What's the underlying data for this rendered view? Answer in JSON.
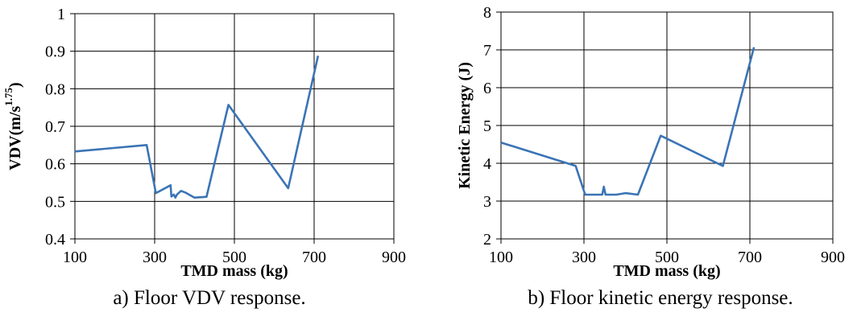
{
  "chart_data": [
    {
      "type": "line",
      "title": "",
      "caption": "a) Floor VDV response.",
      "xlabel": "TMD mass (kg)",
      "ylabel": "VDV(m/s",
      "ylabel_sup": "1.75",
      "ylabel_end": ")",
      "xlim": [
        100,
        900
      ],
      "ylim": [
        0.4,
        1
      ],
      "xticks": [
        100,
        300,
        500,
        700,
        900
      ],
      "xtick_labels": [
        "100",
        "300",
        "500",
        "700",
        "900"
      ],
      "yticks": [
        0.4,
        0.5,
        0.6,
        0.7,
        0.8,
        0.9,
        1
      ],
      "ytick_labels": [
        "0.4",
        "0.5",
        "0.6",
        "0.7",
        "0.8",
        "0.9",
        "1"
      ],
      "grid": true,
      "color": "#3b74b5",
      "series": [
        {
          "x": [
            100,
            280,
            303,
            340,
            342,
            348,
            352,
            356,
            366,
            378,
            400,
            430,
            485,
            635,
            710
          ],
          "y": [
            0.633,
            0.65,
            0.522,
            0.543,
            0.513,
            0.518,
            0.51,
            0.518,
            0.528,
            0.523,
            0.51,
            0.512,
            0.757,
            0.535,
            0.888
          ]
        }
      ]
    },
    {
      "type": "line",
      "title": "",
      "caption": "b) Floor kinetic energy response.",
      "xlabel": "TMD mass (kg)",
      "ylabel": "Kinetic Energy (J)",
      "ylabel_sup": "",
      "ylabel_end": "",
      "xlim": [
        100,
        900
      ],
      "ylim": [
        2,
        8
      ],
      "xticks": [
        100,
        300,
        500,
        700,
        900
      ],
      "xtick_labels": [
        "100",
        "300",
        "500",
        "700",
        "900"
      ],
      "yticks": [
        2,
        3,
        4,
        5,
        6,
        7,
        8
      ],
      "ytick_labels": [
        "2",
        "3",
        "4",
        "5",
        "6",
        "7",
        "8"
      ],
      "grid": true,
      "color": "#3b74b5",
      "series": [
        {
          "x": [
            100,
            280,
            303,
            340,
            344,
            348,
            352,
            356,
            378,
            400,
            430,
            485,
            635,
            710
          ],
          "y": [
            4.55,
            3.93,
            3.17,
            3.17,
            3.17,
            3.38,
            3.17,
            3.17,
            3.17,
            3.21,
            3.17,
            4.73,
            3.93,
            7.07
          ]
        }
      ]
    }
  ]
}
